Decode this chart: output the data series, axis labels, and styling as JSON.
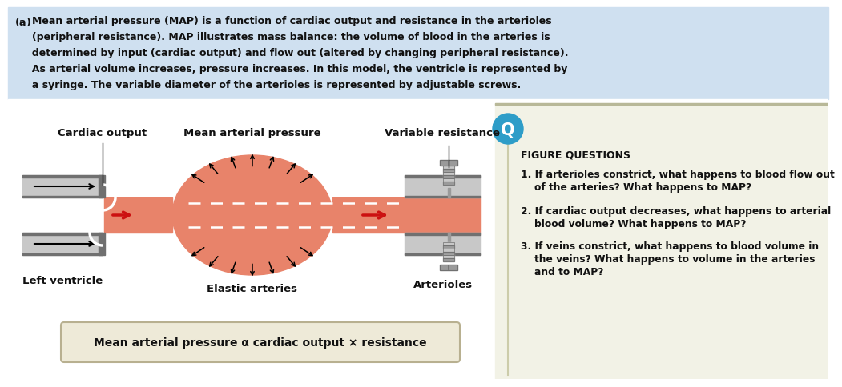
{
  "bg_top_color": "#cfe0f0",
  "salmon_color": "#e8836a",
  "salmon_light": "#f0a080",
  "gray_med": "#9a9a9a",
  "gray_dark": "#707070",
  "gray_light": "#c8c8c8",
  "gray_tube": "#888888",
  "red_arrow": "#cc1111",
  "text_color": "#111111",
  "blue_circle": "#2e9dc8",
  "question_bg": "#f2f2e6",
  "question_line": "#b8b898",
  "formula_bg": "#eeead8",
  "formula_border": "#b8b090",
  "white": "#ffffff",
  "label_cardiac_output": "Cardiac output",
  "label_map": "Mean arterial pressure",
  "label_variable_resistance": "Variable resistance",
  "label_left_ventricle": "Left ventricle",
  "label_elastic_arteries": "Elastic arteries",
  "label_arterioles": "Arterioles",
  "formula_text": "Mean arterial pressure α cardiac output × resistance",
  "figure_questions": "FIGURE QUESTIONS",
  "q1_line1": "1. If arterioles constrict, what happens to blood flow out",
  "q1_line2": "    of the arteries? What happens to MAP?",
  "q2_line1": "2. If cardiac output decreases, what happens to arterial",
  "q2_line2": "    blood volume? What happens to MAP?",
  "q3_line1": "3. If veins constrict, what happens to blood volume in",
  "q3_line2": "    the veins? What happens to volume in the arteries",
  "q3_line3": "    and to MAP?",
  "title_line1": "(a) Mean arterial pressure (MAP) is a function of cardiac output and resistance in the arterioles",
  "title_line2": "     (peripheral resistance). MAP illustrates mass balance: the volume of blood in the arteries is",
  "title_line3": "     determined by input (cardiac output) and flow out (altered by changing peripheral resistance).",
  "title_line4": "     As arterial volume increases, pressure increases. In this model, the ventricle is represented by",
  "title_line5": "     a syringe. The variable diameter of the arterioles is represented by adjustable screws."
}
